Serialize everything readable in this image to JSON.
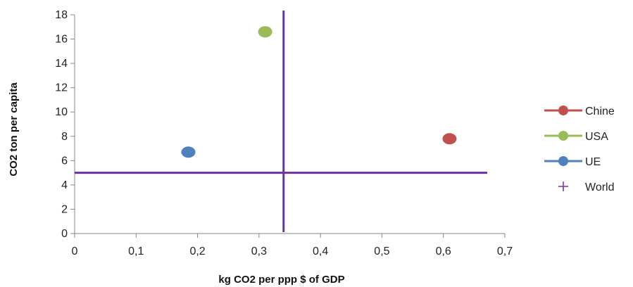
{
  "chart_data": {
    "type": "scatter",
    "xlabel": "kg CO2 per ppp $ of GDP",
    "ylabel": "CO2 ton per capita",
    "xlim": [
      0,
      0.7
    ],
    "ylim": [
      0,
      18
    ],
    "x_ticks": [
      "0",
      "0,1",
      "0,2",
      "0,3",
      "0,4",
      "0,5",
      "0,6",
      "0,7"
    ],
    "y_ticks": [
      "0",
      "2",
      "4",
      "6",
      "8",
      "10",
      "12",
      "14",
      "16",
      "18"
    ],
    "grid": false,
    "legend_position": "right",
    "series": [
      {
        "name": "Chine",
        "color": "#c0504d",
        "marker": "circle",
        "points": [
          {
            "x": 0.61,
            "y": 7.8
          }
        ]
      },
      {
        "name": "USA",
        "color": "#9bbb59",
        "marker": "circle",
        "points": [
          {
            "x": 0.31,
            "y": 16.6
          }
        ]
      },
      {
        "name": "UE",
        "color": "#4f81bd",
        "marker": "circle",
        "points": [
          {
            "x": 0.185,
            "y": 6.7
          }
        ]
      },
      {
        "name": "World",
        "color": "#7030a0",
        "marker": "cross",
        "points": [
          {
            "x": 0.34,
            "y": 5.0
          }
        ]
      }
    ]
  }
}
